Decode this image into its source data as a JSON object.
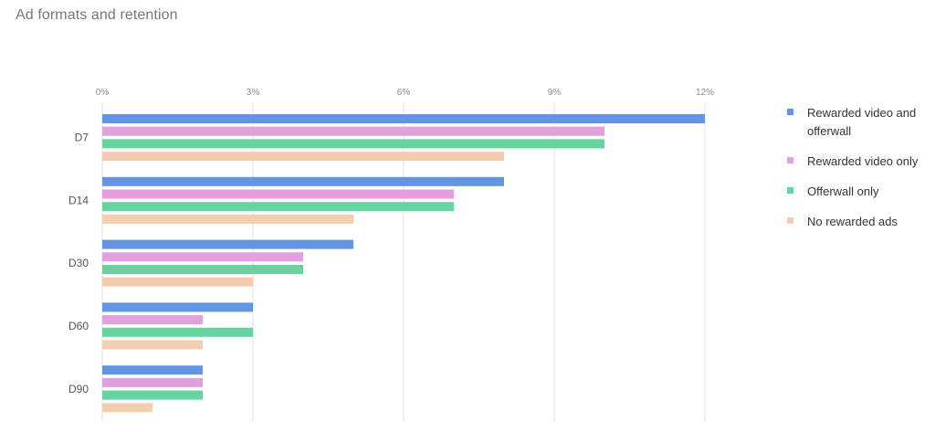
{
  "title": "Ad formats and retention",
  "chart_data": {
    "type": "bar",
    "orientation": "horizontal",
    "title": "Ad formats and retention",
    "categories": [
      "D7",
      "D14",
      "D30",
      "D60",
      "D90"
    ],
    "series": [
      {
        "name": "Rewarded video and offerwall",
        "color": "#6495e3",
        "values": [
          12,
          8,
          5,
          3,
          2
        ]
      },
      {
        "name": "Rewarded video only",
        "color": "#e2a0dc",
        "values": [
          10,
          7,
          4,
          2,
          2
        ]
      },
      {
        "name": "Offerwall only",
        "color": "#66d4a0",
        "values": [
          10,
          7,
          4,
          3,
          2
        ]
      },
      {
        "name": "No rewarded ads",
        "color": "#f5cdb0",
        "values": [
          8,
          5,
          3,
          2,
          1
        ]
      }
    ],
    "xlim": [
      0,
      12
    ],
    "xticks": [
      "0%",
      "3%",
      "6%",
      "9%",
      "12%"
    ],
    "grid": true,
    "legend_position": "right"
  }
}
